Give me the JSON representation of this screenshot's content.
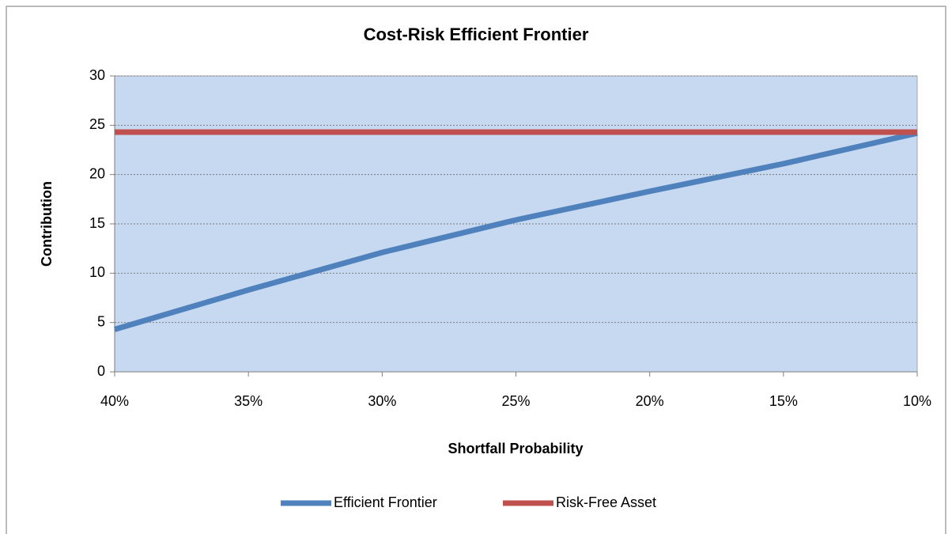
{
  "chart_data": {
    "type": "line",
    "title": "Cost-Risk Efficient Frontier",
    "x_label": "Shortfall Probability",
    "y_label": "Contribution",
    "x": [
      40,
      35,
      30,
      25,
      20,
      15,
      10
    ],
    "series": [
      {
        "name": "Efficient Frontier",
        "color": "#4f81bd",
        "values": [
          4.3,
          8.3,
          12.1,
          15.4,
          18.3,
          21.1,
          24.2
        ]
      },
      {
        "name": "Risk-Free Asset",
        "color": "#c0504d",
        "values": [
          24.3,
          24.3,
          24.3,
          24.3,
          24.3,
          24.3,
          24.3
        ]
      }
    ],
    "xlim": [
      40,
      10
    ],
    "xticks": [
      {
        "value": 40,
        "label": "40%"
      },
      {
        "value": 35,
        "label": "35%"
      },
      {
        "value": 30,
        "label": "30%"
      },
      {
        "value": 25,
        "label": "25%"
      },
      {
        "value": 20,
        "label": "20%"
      },
      {
        "value": 15,
        "label": "15%"
      },
      {
        "value": 10,
        "label": "10%"
      }
    ],
    "ylim": [
      0,
      30
    ],
    "yticks": [
      0,
      5,
      10,
      15,
      20,
      25,
      30
    ],
    "grid": true,
    "legend": "bottom",
    "plot_background": "#c6d9f0"
  }
}
